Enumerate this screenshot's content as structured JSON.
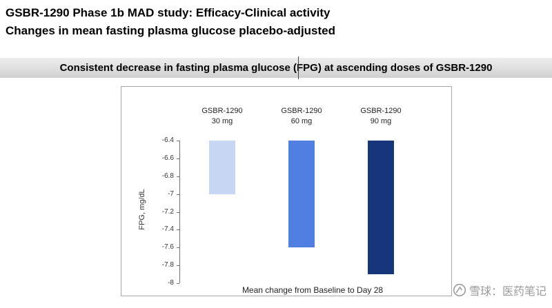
{
  "header": {
    "title_line1": "GSBR-1290 Phase 1b MAD study: Efficacy-Clinical activity",
    "title_line2": "Changes in mean fasting plasma glucose placebo-adjusted"
  },
  "banner": {
    "text": "Consistent decrease in fasting plasma glucose (FPG) at ascending doses of GSBR-1290"
  },
  "chart_data": {
    "type": "bar",
    "title": "",
    "ylabel": "FPG, mg/dL",
    "xlabel": "Mean change from Baseline to Day 28",
    "baseline": -6.4,
    "ylim": [
      -8,
      -6.4
    ],
    "grid": false,
    "legend": false,
    "yticks": [
      {
        "label": "-6.4",
        "value": -6.4
      },
      {
        "label": "-6.6",
        "value": -6.6
      },
      {
        "label": "-6.8",
        "value": -6.8
      },
      {
        "label": "-7",
        "value": -7.0
      },
      {
        "label": "-7.2",
        "value": -7.2
      },
      {
        "label": "-7.4",
        "value": -7.4
      },
      {
        "label": "-7.6",
        "value": -7.6
      },
      {
        "label": "-7.8",
        "value": -7.8
      },
      {
        "label": "-8",
        "value": -8.0
      }
    ],
    "groups": [
      {
        "label_line1": "GSBR-1290",
        "label_line2": "30 mg",
        "value": -7.0,
        "color": "#c7d6f3"
      },
      {
        "label_line1": "GSBR-1290",
        "label_line2": "60 mg",
        "value": -7.6,
        "color": "#4f7fe0"
      },
      {
        "label_line1": "GSBR-1290",
        "label_line2": "90 mg",
        "value": -7.9,
        "color": "#16357b"
      }
    ]
  },
  "watermark": {
    "text": "雪球：医药笔记"
  }
}
